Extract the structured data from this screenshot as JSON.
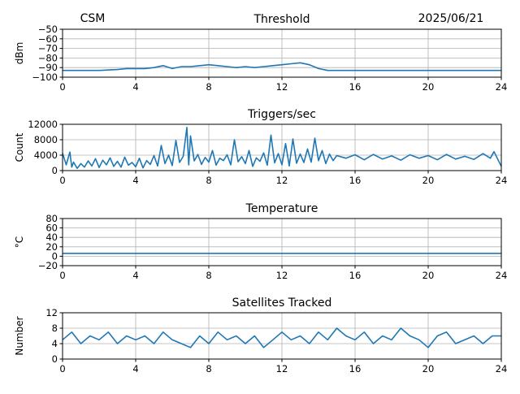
{
  "header": {
    "station": "CSM",
    "date": "2025/06/21"
  },
  "colors": {
    "series": "#1f77b4",
    "grid": "#b0b0b0",
    "axis": "#000000"
  },
  "chart_data": [
    {
      "type": "line",
      "title": "Threshold",
      "xlabel": "",
      "ylabel": "dBm",
      "xlim": [
        0,
        24
      ],
      "ylim": [
        -100,
        -50
      ],
      "xticks": [
        0,
        4,
        8,
        12,
        16,
        20,
        24
      ],
      "yticks": [
        -50,
        -60,
        -70,
        -80,
        -90,
        -100
      ],
      "grid": true,
      "series": [
        {
          "x": [
            0,
            1,
            2,
            3,
            3.5,
            4,
            4.5,
            5,
            5.5,
            6,
            6.5,
            7,
            7.5,
            8,
            8.5,
            9,
            9.5,
            10,
            10.5,
            11,
            11.5,
            12,
            12.5,
            13,
            13.5,
            14,
            14.5,
            15,
            16,
            17,
            18,
            19,
            20,
            21,
            22,
            23,
            24
          ],
          "y": [
            -93,
            -93,
            -93,
            -92,
            -91,
            -91,
            -91,
            -90,
            -88,
            -91,
            -89,
            -89,
            -88,
            -87,
            -88,
            -89,
            -90,
            -89,
            -90,
            -89,
            -88,
            -87,
            -86,
            -85,
            -87,
            -91,
            -93,
            -93,
            -93,
            -93,
            -93,
            -93,
            -93,
            -93,
            -93,
            -93,
            -93
          ]
        }
      ]
    },
    {
      "type": "line",
      "title": "Triggers/sec",
      "xlabel": "",
      "ylabel": "Count",
      "xlim": [
        0,
        24
      ],
      "ylim": [
        0,
        12000
      ],
      "xticks": [
        0,
        4,
        8,
        12,
        16,
        20,
        24
      ],
      "yticks": [
        0,
        4000,
        8000,
        12000
      ],
      "ytick_labels": [
        "0",
        "4000",
        "8000",
        "12000"
      ],
      "grid": true,
      "series": [
        {
          "x": [
            0,
            0.2,
            0.4,
            0.5,
            0.6,
            0.8,
            1.0,
            1.2,
            1.4,
            1.6,
            1.8,
            2.0,
            2.2,
            2.4,
            2.6,
            2.8,
            3.0,
            3.2,
            3.4,
            3.6,
            3.8,
            4.0,
            4.2,
            4.4,
            4.6,
            4.8,
            5.0,
            5.2,
            5.4,
            5.6,
            5.8,
            6.0,
            6.2,
            6.4,
            6.6,
            6.8,
            6.9,
            7.0,
            7.2,
            7.4,
            7.6,
            7.8,
            8.0,
            8.2,
            8.4,
            8.6,
            8.8,
            9.0,
            9.2,
            9.4,
            9.6,
            9.8,
            10.0,
            10.2,
            10.4,
            10.6,
            10.8,
            11.0,
            11.2,
            11.4,
            11.6,
            11.8,
            12.0,
            12.2,
            12.4,
            12.6,
            12.8,
            13.0,
            13.2,
            13.4,
            13.6,
            13.8,
            14.0,
            14.2,
            14.4,
            14.6,
            14.8,
            15.0,
            15.5,
            16.0,
            16.5,
            17.0,
            17.5,
            18.0,
            18.5,
            19.0,
            19.5,
            20.0,
            20.5,
            21.0,
            21.5,
            22.0,
            22.5,
            23.0,
            23.4,
            23.6,
            24.0
          ],
          "y": [
            4500,
            1500,
            4800,
            900,
            2200,
            600,
            1800,
            900,
            2500,
            1200,
            3100,
            800,
            2700,
            1500,
            3300,
            1100,
            2400,
            900,
            3500,
            1400,
            2100,
            1000,
            3200,
            700,
            2600,
            1600,
            3900,
            1200,
            6500,
            1800,
            4000,
            1300,
            7800,
            2100,
            3700,
            11200,
            1500,
            9000,
            2500,
            4200,
            1600,
            3400,
            2200,
            5200,
            1400,
            3200,
            2600,
            4100,
            1500,
            8000,
            2300,
            3600,
            1800,
            5200,
            1100,
            3300,
            2400,
            4600,
            1400,
            9200,
            2000,
            4400,
            1500,
            7000,
            1200,
            8200,
            1900,
            4300,
            2100,
            5600,
            2200,
            8400,
            2600,
            5200,
            1800,
            4300,
            2600,
            3900,
            3200,
            4100,
            2800,
            4200,
            3000,
            3800,
            2700,
            4100,
            3200,
            3900,
            2800,
            4200,
            3000,
            3700,
            2900,
            4400,
            3200,
            4900,
            1100
          ]
        }
      ]
    },
    {
      "type": "line",
      "title": "Temperature",
      "xlabel": "",
      "ylabel": "°C",
      "xlim": [
        0,
        24
      ],
      "ylim": [
        -20,
        80
      ],
      "xticks": [
        0,
        4,
        8,
        12,
        16,
        20,
        24
      ],
      "yticks": [
        -20,
        0,
        20,
        40,
        60,
        80
      ],
      "grid": true,
      "series": [
        {
          "x": [
            0,
            24
          ],
          "y": [
            6,
            6
          ]
        }
      ]
    },
    {
      "type": "line",
      "title": "Satellites Tracked",
      "xlabel": "",
      "ylabel": "Number",
      "xlim": [
        0,
        24
      ],
      "ylim": [
        0,
        12
      ],
      "xticks": [
        0,
        4,
        8,
        12,
        16,
        20,
        24
      ],
      "yticks": [
        0,
        4,
        8,
        12
      ],
      "grid": true,
      "series": [
        {
          "x": [
            0,
            0.5,
            1,
            1.5,
            2,
            2.5,
            3,
            3.5,
            4,
            4.5,
            5,
            5.5,
            6,
            6.5,
            7,
            7.5,
            8,
            8.5,
            9,
            9.5,
            10,
            10.5,
            11,
            11.5,
            12,
            12.5,
            13,
            13.5,
            14,
            14.5,
            15,
            15.5,
            16,
            16.5,
            17,
            17.5,
            18,
            18.5,
            19,
            19.5,
            20,
            20.5,
            21,
            21.5,
            22,
            22.5,
            23,
            23.5,
            24
          ],
          "y": [
            5,
            7,
            4,
            6,
            5,
            7,
            4,
            6,
            5,
            6,
            4,
            7,
            5,
            4,
            3,
            6,
            4,
            7,
            5,
            6,
            4,
            6,
            3,
            5,
            7,
            5,
            6,
            4,
            7,
            5,
            8,
            6,
            5,
            7,
            4,
            6,
            5,
            8,
            6,
            5,
            3,
            6,
            7,
            4,
            5,
            6,
            4,
            6,
            6
          ]
        }
      ]
    }
  ]
}
